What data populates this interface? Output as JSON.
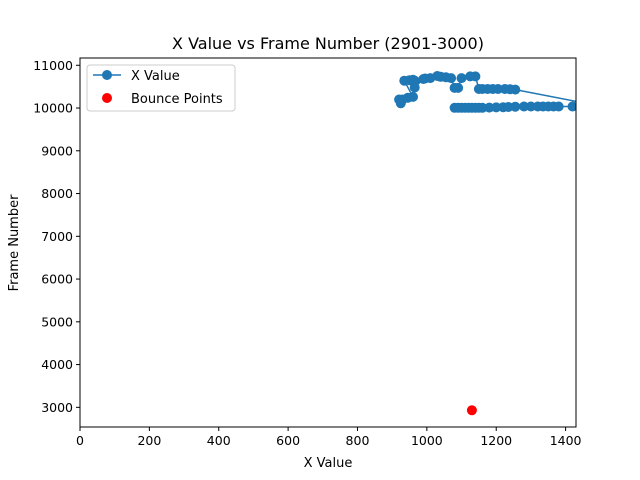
{
  "chart_data": {
    "type": "scatter",
    "title": "X Value vs Frame Number (2901-3000)",
    "xlabel": "X Value",
    "ylabel": "Frame Number",
    "xlim": [
      0,
      1430
    ],
    "ylim": [
      2540,
      11170
    ],
    "xticks": [
      0,
      200,
      400,
      600,
      800,
      1000,
      1200,
      1400
    ],
    "yticks": [
      3000,
      4000,
      5000,
      6000,
      7000,
      8000,
      9000,
      10000,
      11000
    ],
    "grid": false,
    "legend_position": "top-left",
    "series": [
      {
        "name": "X Value",
        "style": "line-with-markers",
        "color": "#1f77b4",
        "points": [
          [
            1080,
            10005
          ],
          [
            1090,
            10005
          ],
          [
            1100,
            10005
          ],
          [
            1110,
            10005
          ],
          [
            1120,
            10005
          ],
          [
            1130,
            10005
          ],
          [
            1140,
            10005
          ],
          [
            1150,
            10005
          ],
          [
            1160,
            10005
          ],
          [
            1180,
            10010
          ],
          [
            1200,
            10015
          ],
          [
            1220,
            10020
          ],
          [
            1235,
            10025
          ],
          [
            1255,
            10030
          ],
          [
            1280,
            10035
          ],
          [
            1300,
            10035
          ],
          [
            1320,
            10035
          ],
          [
            1335,
            10035
          ],
          [
            1350,
            10035
          ],
          [
            1365,
            10035
          ],
          [
            1380,
            10035
          ],
          [
            1420,
            10035
          ],
          [
            1440,
            10035
          ],
          [
            1470,
            10040
          ],
          [
            1500,
            10045
          ],
          [
            1255,
            10430
          ],
          [
            1240,
            10440
          ],
          [
            1225,
            10445
          ],
          [
            1205,
            10445
          ],
          [
            1190,
            10445
          ],
          [
            1175,
            10445
          ],
          [
            1160,
            10445
          ],
          [
            1150,
            10445
          ],
          [
            1140,
            10740
          ],
          [
            1125,
            10740
          ],
          [
            1100,
            10700
          ],
          [
            1090,
            10470
          ],
          [
            1080,
            10470
          ],
          [
            1070,
            10700
          ],
          [
            1055,
            10720
          ],
          [
            1040,
            10730
          ],
          [
            1030,
            10750
          ],
          [
            1010,
            10700
          ],
          [
            995,
            10690
          ],
          [
            990,
            10680
          ],
          [
            965,
            10480
          ],
          [
            965,
            10640
          ],
          [
            960,
            10660
          ],
          [
            950,
            10650
          ],
          [
            935,
            10640
          ],
          [
            960,
            10260
          ],
          [
            945,
            10240
          ],
          [
            930,
            10200
          ],
          [
            925,
            10110
          ],
          [
            920,
            10200
          ]
        ]
      },
      {
        "name": "Bounce Points",
        "style": "markers",
        "color": "#ff0000",
        "points": [
          [
            1130,
            2930
          ]
        ]
      }
    ]
  }
}
